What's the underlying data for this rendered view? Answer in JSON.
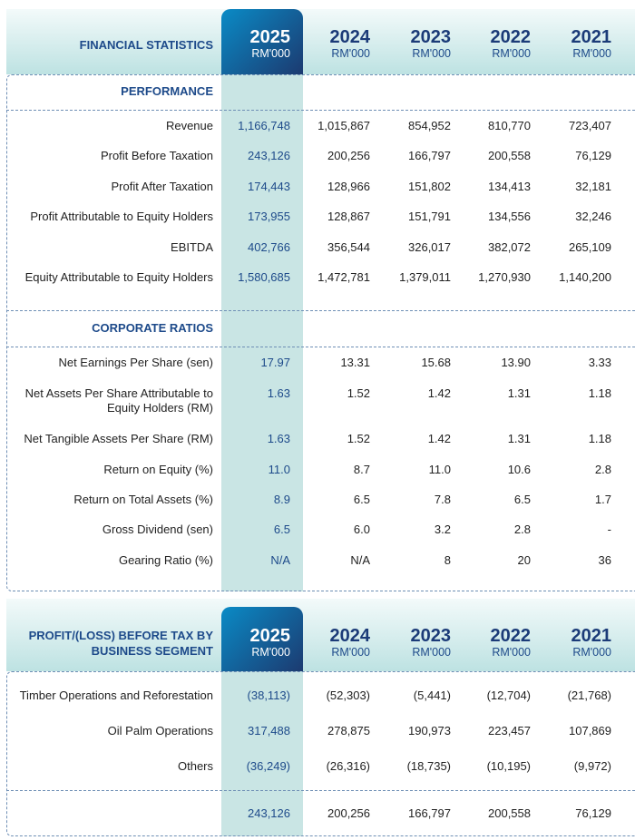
{
  "years": [
    {
      "year": "2025",
      "unit": "RM'000"
    },
    {
      "year": "2024",
      "unit": "RM'000"
    },
    {
      "year": "2023",
      "unit": "RM'000"
    },
    {
      "year": "2022",
      "unit": "RM'000"
    },
    {
      "year": "2021",
      "unit": "RM'000"
    }
  ],
  "financial": {
    "title": "FINANCIAL STATISTICS",
    "performance": {
      "heading": "PERFORMANCE",
      "rows": [
        {
          "label": "Revenue",
          "values": [
            "1,166,748",
            "1,015,867",
            "854,952",
            "810,770",
            "723,407"
          ]
        },
        {
          "label": "Profit Before Taxation",
          "values": [
            "243,126",
            "200,256",
            "166,797",
            "200,558",
            "76,129"
          ]
        },
        {
          "label": "Profit After Taxation",
          "values": [
            "174,443",
            "128,966",
            "151,802",
            "134,413",
            "32,181"
          ]
        },
        {
          "label": "Profit Attributable to Equity Holders",
          "values": [
            "173,955",
            "128,867",
            "151,791",
            "134,556",
            "32,246"
          ]
        },
        {
          "label": "EBITDA",
          "values": [
            "402,766",
            "356,544",
            "326,017",
            "382,072",
            "265,109"
          ]
        },
        {
          "label": "Equity Attributable to Equity Holders",
          "values": [
            "1,580,685",
            "1,472,781",
            "1,379,011",
            "1,270,930",
            "1,140,200"
          ]
        }
      ]
    },
    "ratios": {
      "heading": "CORPORATE RATIOS",
      "rows": [
        {
          "label": "Net Earnings Per Share (sen)",
          "values": [
            "17.97",
            "13.31",
            "15.68",
            "13.90",
            "3.33"
          ]
        },
        {
          "label": "Net Assets Per Share Attributable to Equity Holders (RM)",
          "values": [
            "1.63",
            "1.52",
            "1.42",
            "1.31",
            "1.18"
          ]
        },
        {
          "label": "Net Tangible Assets Per Share (RM)",
          "values": [
            "1.63",
            "1.52",
            "1.42",
            "1.31",
            "1.18"
          ]
        },
        {
          "label": "Return on Equity (%)",
          "values": [
            "11.0",
            "8.7",
            "11.0",
            "10.6",
            "2.8"
          ]
        },
        {
          "label": "Return on Total Assets (%)",
          "values": [
            "8.9",
            "6.5",
            "7.8",
            "6.5",
            "1.7"
          ]
        },
        {
          "label": "Gross Dividend (sen)",
          "values": [
            "6.5",
            "6.0",
            "3.2",
            "2.8",
            "-"
          ]
        },
        {
          "label": "Gearing Ratio (%)",
          "values": [
            "N/A",
            "N/A",
            "8",
            "20",
            "36"
          ]
        }
      ]
    }
  },
  "segment": {
    "title": "PROFIT/(LOSS) BEFORE TAX BY BUSINESS SEGMENT",
    "rows": [
      {
        "label": "Timber Operations and Reforestation",
        "values": [
          "(38,113)",
          "(52,303)",
          "(5,441)",
          "(12,704)",
          "(21,768)"
        ]
      },
      {
        "label": "Oil Palm Operations",
        "values": [
          "317,488",
          "278,875",
          "190,973",
          "223,457",
          "107,869"
        ]
      },
      {
        "label": "Others",
        "values": [
          "(36,249)",
          "(26,316)",
          "(18,735)",
          "(10,195)",
          "(9,972)"
        ]
      }
    ],
    "total": {
      "label": "",
      "values": [
        "243,126",
        "200,256",
        "166,797",
        "200,558",
        "76,129"
      ]
    }
  }
}
